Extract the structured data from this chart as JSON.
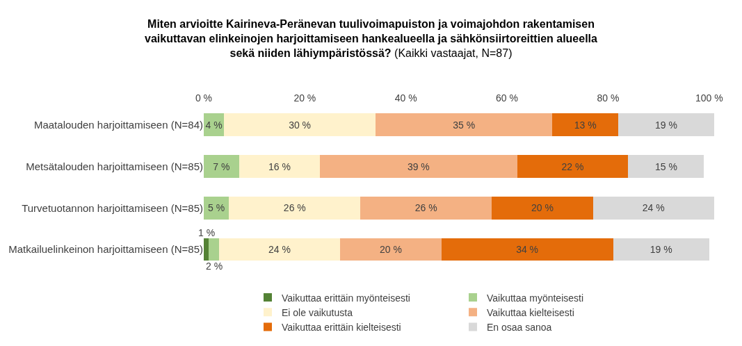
{
  "chart_data": {
    "type": "bar",
    "orientation": "horizontal",
    "stacked": true,
    "title": "Miten arvioitte Kairineva-Peränevan tuulivoimapuiston ja voimajohdon rakentamisen vaikuttavan elinkeinojen harjoittamiseen hankealueella ja sähkönsiirtoreittien alueella sekä niiden lähiympäristössä?",
    "subtitle": "(Kaikki vastaajat, N=87)",
    "categories": [
      "Maatalouden harjoittamiseen (N=84)",
      "Metsätalouden harjoittamiseen (N=85)",
      "Turvetuotannon harjoittamiseen (N=85)",
      "Matkailuelinkeinon harjoittamiseen (N=85)"
    ],
    "xlim": [
      0,
      101
    ],
    "xticks": [
      {
        "value": 0,
        "label": "0 %"
      },
      {
        "value": 20,
        "label": "20 %"
      },
      {
        "value": 40,
        "label": "40 %"
      },
      {
        "value": 60,
        "label": "60 %"
      },
      {
        "value": 80,
        "label": "80 %"
      },
      {
        "value": 100,
        "label": "100 %"
      }
    ],
    "legend": "bottom",
    "grid": false,
    "series": [
      {
        "name": "Vaikuttaa erittäin myönteisesti",
        "color": "#548235",
        "values": [
          0,
          0,
          0,
          1
        ],
        "value_labels": [
          null,
          null,
          null,
          "1 %"
        ]
      },
      {
        "name": "Vaikuttaa myönteisesti",
        "color": "#a9d18e",
        "values": [
          4,
          7,
          5,
          2
        ],
        "value_labels": [
          "4 %",
          "7 %",
          "5 %",
          "2 %"
        ]
      },
      {
        "name": "Ei ole vaikutusta",
        "color": "#fff2cc",
        "values": [
          30,
          16,
          26,
          24
        ],
        "value_labels": [
          "30 %",
          "16 %",
          "26 %",
          "24 %"
        ]
      },
      {
        "name": "Vaikuttaa kielteisesti",
        "color": "#f4b183",
        "values": [
          35,
          39,
          26,
          20
        ],
        "value_labels": [
          "35 %",
          "39 %",
          "26 %",
          "20 %"
        ]
      },
      {
        "name": "Vaikuttaa erittäin kielteisesti",
        "color": "#e46c0a",
        "values": [
          13,
          22,
          20,
          34
        ],
        "value_labels": [
          "13 %",
          "22 %",
          "20 %",
          "34 %"
        ]
      },
      {
        "name": "En osaa sanoa",
        "color": "#d9d9d9",
        "values": [
          19,
          15,
          24,
          19
        ],
        "value_labels": [
          "19 %",
          "15 %",
          "24 %",
          "19 %"
        ]
      }
    ]
  }
}
